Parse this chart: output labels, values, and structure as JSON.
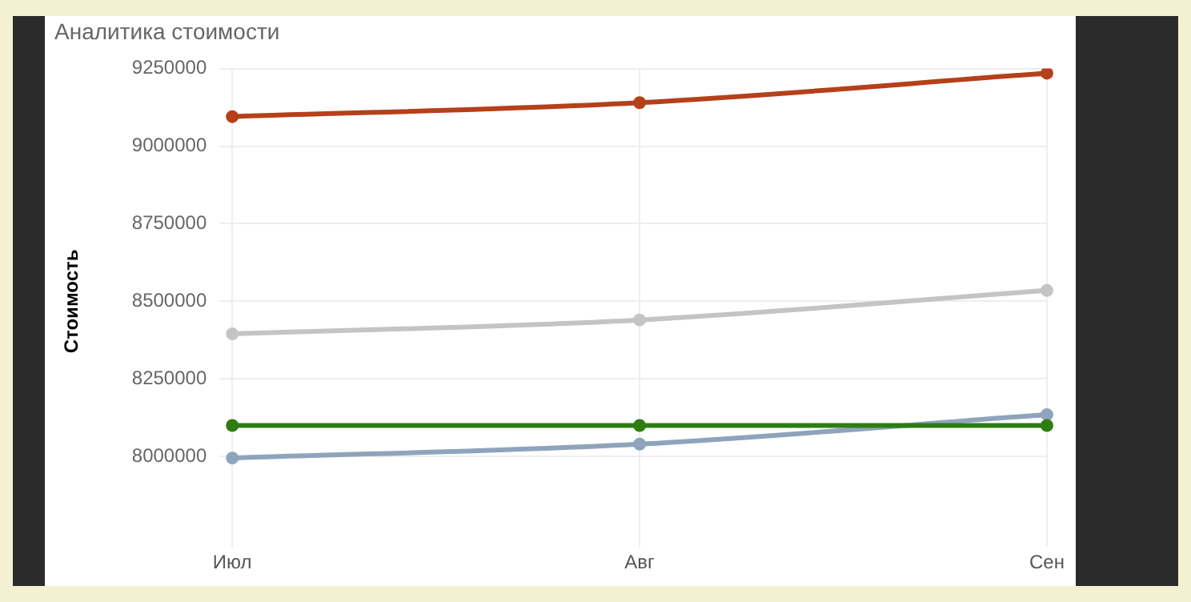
{
  "chart_data": {
    "type": "line",
    "title": "Аналитика стоимости",
    "ylabel": "Стоимость",
    "categories": [
      "Июл",
      "Авг",
      "Сен"
    ],
    "series": [
      {
        "color": "#b5401a",
        "values": [
          9095000,
          9140000,
          9235000
        ]
      },
      {
        "color": "#c4c4c4",
        "values": [
          8395000,
          8440000,
          8535000
        ]
      },
      {
        "color": "#2e7d12",
        "values": [
          8100000,
          8100000,
          8100000
        ]
      },
      {
        "color": "#8ea4bc",
        "values": [
          7995000,
          8040000,
          8135000
        ]
      }
    ],
    "ylim": [
      7750000,
      9250000
    ],
    "yticks": [
      8000000,
      8250000,
      8500000,
      8750000,
      9000000,
      9250000
    ],
    "grid": true,
    "legend": false,
    "marker": "circle",
    "line_style": "solid"
  }
}
